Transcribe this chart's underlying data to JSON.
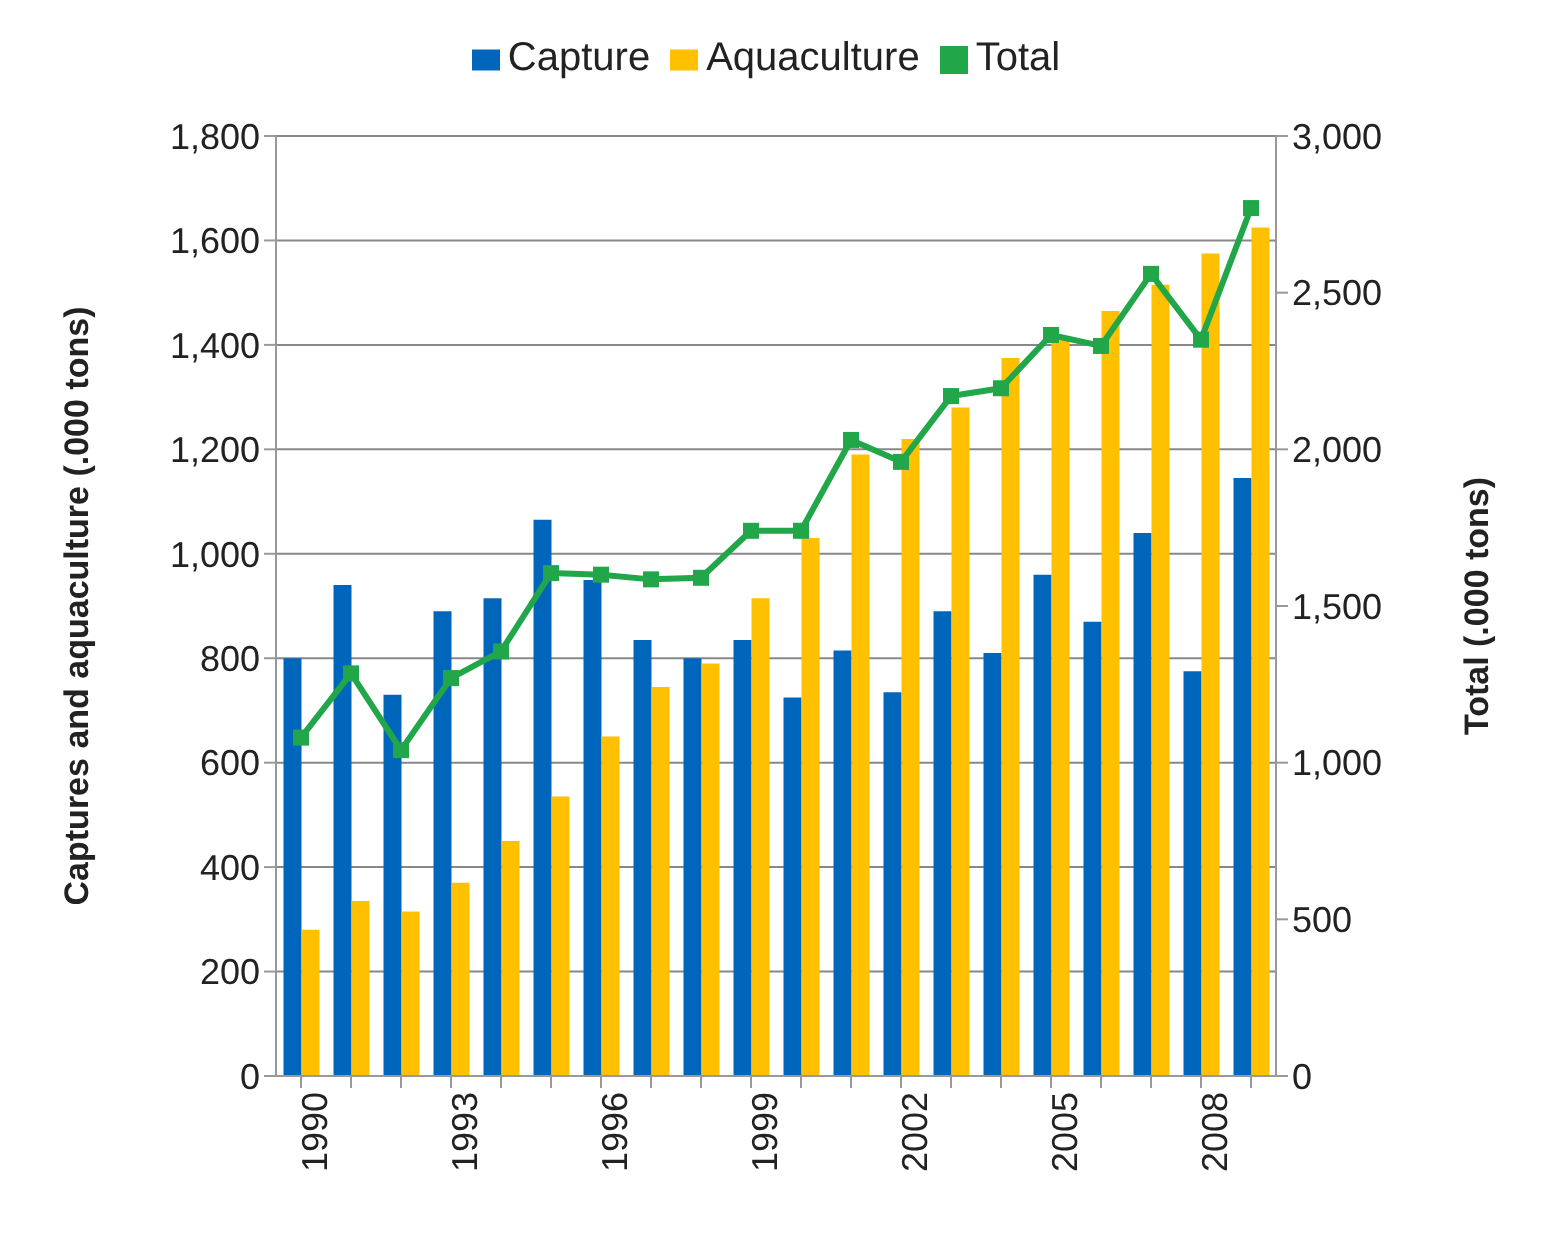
{
  "chart_data": {
    "type": "bar",
    "ylabel": "Captures and aquaculture (.000 tons)",
    "y2label": "Total (.000 tons)",
    "categories": [
      "1990",
      null,
      null,
      "1993",
      null,
      null,
      "1996",
      null,
      null,
      "1999",
      null,
      null,
      "2002",
      null,
      null,
      "2005",
      null,
      null,
      "2008",
      null
    ],
    "series": [
      {
        "name": "Capture",
        "color": "#0066bb",
        "values": [
          800,
          940,
          730,
          890,
          915,
          1065,
          950,
          835,
          800,
          835,
          725,
          815,
          735,
          890,
          810,
          960,
          870,
          1040,
          775,
          1145
        ]
      },
      {
        "name": "Aquaculture",
        "color": "#ffc000",
        "values": [
          280,
          335,
          315,
          370,
          450,
          535,
          650,
          745,
          790,
          915,
          1030,
          1190,
          1220,
          1280,
          1375,
          1415,
          1465,
          1515,
          1575,
          1625
        ]
      },
      {
        "name": "Total",
        "type": "line",
        "axis": "y2",
        "color": "#22a64a",
        "marker": "square",
        "values": [
          1080,
          1285,
          1040,
          1270,
          1355,
          1605,
          1600,
          1585,
          1590,
          1740,
          1740,
          2030,
          1960,
          2170,
          2195,
          2365,
          2330,
          2560,
          2350,
          2770
        ]
      }
    ],
    "ylim": [
      0,
      1800
    ],
    "yticks": [
      0,
      200,
      400,
      600,
      800,
      {
        "value": 1000,
        "label": "1,000"
      },
      {
        "value": 1200,
        "label": "1,200"
      },
      {
        "value": 1400,
        "label": "1,400"
      },
      {
        "value": 1600,
        "label": "1,600"
      },
      {
        "value": 1800,
        "label": "1,800"
      }
    ],
    "y2lim": [
      0,
      3000
    ],
    "y2ticks": [
      0,
      500,
      {
        "value": 1000,
        "label": "1,000"
      },
      {
        "value": 1500,
        "label": "1,500"
      },
      {
        "value": 2000,
        "label": "2,000"
      },
      {
        "value": 2500,
        "label": "2,500"
      },
      {
        "value": 3000,
        "label": "3,000"
      }
    ],
    "grid": "y",
    "legend": "top"
  }
}
